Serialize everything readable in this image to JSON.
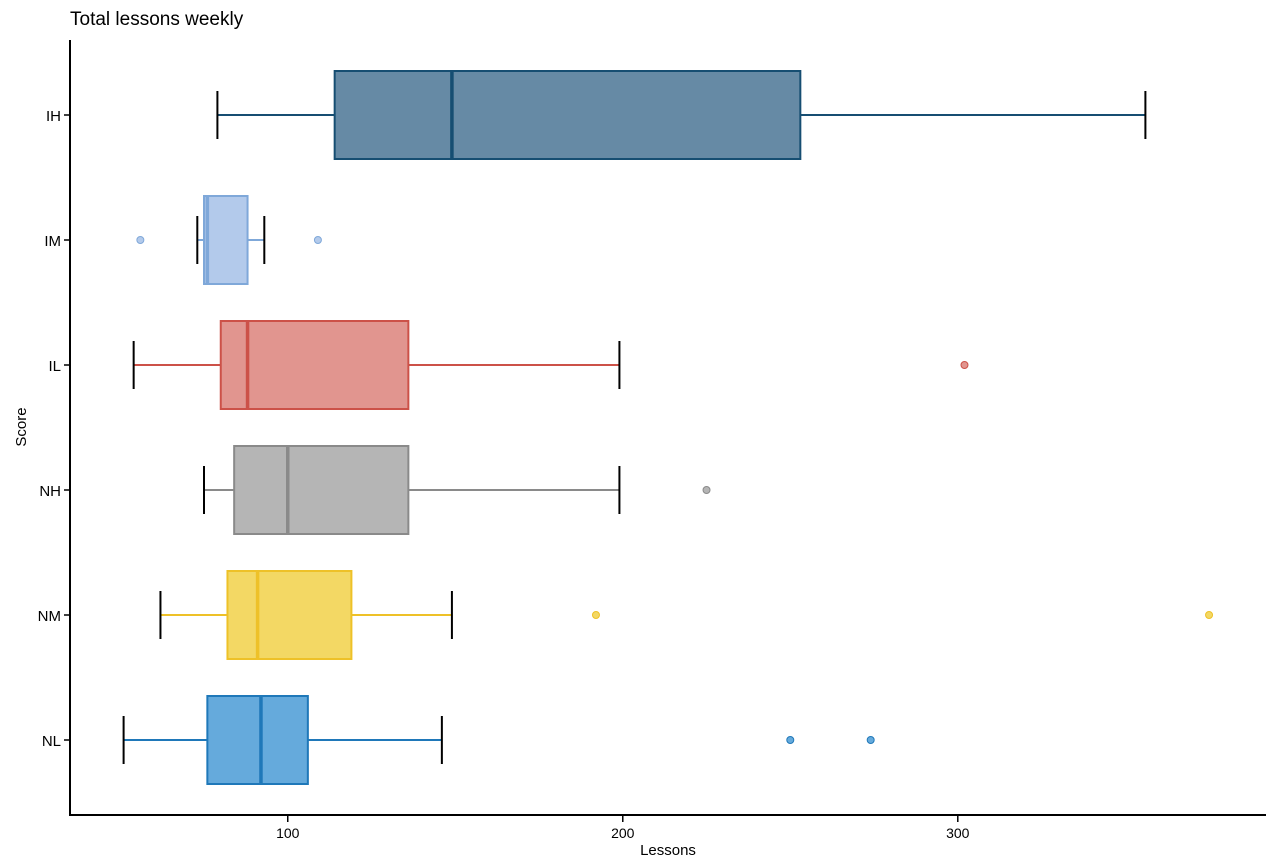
{
  "chart_data": {
    "type": "boxplot",
    "orientation": "horizontal",
    "title": "Total lessons weekly",
    "xlabel": "Lessons",
    "ylabel": "Score",
    "xlim": [
      35,
      392
    ],
    "xticks": [
      100,
      200,
      300
    ],
    "grid": false,
    "legend": "none",
    "categories": [
      "IH",
      "IM",
      "IL",
      "NH",
      "NM",
      "NL"
    ],
    "series": [
      {
        "category": "IH",
        "min": 79,
        "q1": 114,
        "median": 149,
        "q3": 253,
        "max": 356,
        "outliers": [],
        "fill": "#668aa5",
        "stroke": "#164e72"
      },
      {
        "category": "IM",
        "min": 73,
        "q1": 75,
        "median": 76,
        "q3": 88,
        "max": 93,
        "outliers": [
          56,
          109
        ],
        "fill": "#b3caeb",
        "stroke": "#7fa8d9"
      },
      {
        "category": "IL",
        "min": 54,
        "q1": 80,
        "median": 88,
        "q3": 136,
        "max": 199,
        "outliers": [
          302
        ],
        "fill": "#e1958f",
        "stroke": "#cc5148"
      },
      {
        "category": "NH",
        "min": 75,
        "q1": 84,
        "median": 100,
        "q3": 136,
        "max": 199,
        "outliers": [
          225
        ],
        "fill": "#b5b5b5",
        "stroke": "#8a8a8a"
      },
      {
        "category": "NM",
        "min": 62,
        "q1": 82,
        "median": 91,
        "q3": 119,
        "max": 149,
        "outliers": [
          192,
          375
        ],
        "fill": "#f3d864",
        "stroke": "#eec128"
      },
      {
        "category": "NL",
        "min": 51,
        "q1": 76,
        "median": 92,
        "q3": 106,
        "max": 146,
        "outliers": [
          250,
          274
        ],
        "fill": "#65aadc",
        "stroke": "#1f78b9"
      }
    ]
  }
}
